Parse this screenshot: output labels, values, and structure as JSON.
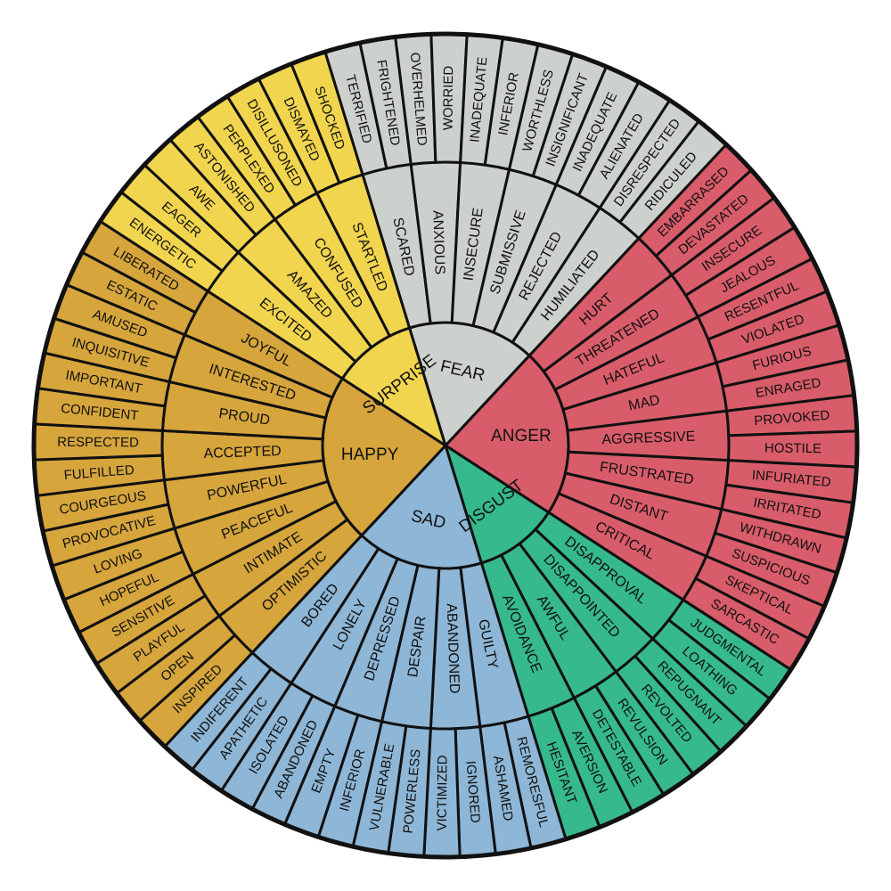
{
  "wheel": [
    {
      "label": "ANGER",
      "color": "#d95c6a",
      "children": [
        {
          "label": "HURT",
          "children": [
            "EMBARRASED",
            "DEVASTATED"
          ]
        },
        {
          "label": "THREATENED",
          "children": [
            "INSECURE",
            "JEALOUS"
          ]
        },
        {
          "label": "HATEFUL",
          "children": [
            "RESENTFUL",
            "VIOLATED"
          ]
        },
        {
          "label": "MAD",
          "children": [
            "FURIOUS",
            "ENRAGED"
          ]
        },
        {
          "label": "AGGRESSIVE",
          "children": [
            "PROVOKED",
            "HOSTILE"
          ]
        },
        {
          "label": "FRUSTRATED",
          "children": [
            "INFURIATED",
            "IRRITATED"
          ]
        },
        {
          "label": "DISTANT",
          "children": [
            "WITHDRAWN",
            "SUSPICIOUS"
          ]
        },
        {
          "label": "CRITICAL",
          "children": [
            "SKEPTICAL",
            "SARCASTIC"
          ]
        }
      ]
    },
    {
      "label": "DISGUST",
      "color": "#36b98c",
      "children": [
        {
          "label": "DISAPPROVAL",
          "children": [
            "JUDGMENTAL",
            "LOATHING"
          ]
        },
        {
          "label": "DISAPPOINTED",
          "children": [
            "REPUGNANT",
            "REVOLTED"
          ]
        },
        {
          "label": "AWFUL",
          "children": [
            "REVULSION",
            "DETESTABLE"
          ]
        },
        {
          "label": "AVOIDANCE",
          "children": [
            "AVERSION",
            "HESITANT"
          ]
        }
      ]
    },
    {
      "label": "SAD",
      "color": "#8eb6d6",
      "children": [
        {
          "label": "GUILTY",
          "children": [
            "REMORESFUL",
            "ASHAMED"
          ]
        },
        {
          "label": "ABANDONED",
          "children": [
            "IGNORED",
            "VICTIMIZED"
          ]
        },
        {
          "label": "DESPAIR",
          "children": [
            "POWERLESS",
            "VULNERABLE"
          ]
        },
        {
          "label": "DEPRESSED",
          "children": [
            "INFERIOR",
            "EMPTY"
          ]
        },
        {
          "label": "LONELY",
          "children": [
            "ABANDONED",
            "ISOLATED"
          ]
        },
        {
          "label": "BORED",
          "children": [
            "APATHETIC",
            "INDIFERENT"
          ]
        }
      ]
    },
    {
      "label": "HAPPY",
      "color": "#d6a53c",
      "children": [
        {
          "label": "OPTIMISTIC",
          "children": [
            "INSPIRED",
            "OPEN"
          ]
        },
        {
          "label": "INTIMATE",
          "children": [
            "PLAYFUL",
            "SENSITIVE"
          ]
        },
        {
          "label": "PEACEFUL",
          "children": [
            "HOPEFUL",
            "LOVING"
          ]
        },
        {
          "label": "POWERFUL",
          "children": [
            "PROVOCATIVE",
            "COURGEOUS"
          ]
        },
        {
          "label": "ACCEPTED",
          "children": [
            "FULFILLED",
            "RESPECTED"
          ]
        },
        {
          "label": "PROUD",
          "children": [
            "CONFIDENT",
            "IMPORTANT"
          ]
        },
        {
          "label": "INTERESTED",
          "children": [
            "INQUISITIVE",
            "AMUSED"
          ]
        },
        {
          "label": "JOYFUL",
          "children": [
            "ESTATIC",
            "LIBERATED"
          ]
        }
      ]
    },
    {
      "label": "SURPRISE",
      "color": "#f2d54e",
      "children": [
        {
          "label": "EXCITED",
          "children": [
            "ENERGETIC",
            "EAGER"
          ]
        },
        {
          "label": "AMAZED",
          "children": [
            "AWE",
            "ASTONISHED"
          ]
        },
        {
          "label": "CONFUSED",
          "children": [
            "PERPLEXED",
            "DISILLUSONED"
          ]
        },
        {
          "label": "STARTLED",
          "children": [
            "DISMAYED",
            "SHOCKED"
          ]
        }
      ]
    },
    {
      "label": "FEAR",
      "color": "#cdd1cd",
      "children": [
        {
          "label": "SCARED",
          "children": [
            "TERRIFIED",
            "FRIGHTENED"
          ]
        },
        {
          "label": "ANXIOUS",
          "children": [
            "OVERHELMED",
            "WORRIED"
          ]
        },
        {
          "label": "INSECURE",
          "children": [
            "INADEQUATE",
            "INFERIOR"
          ]
        },
        {
          "label": "SUBMISSIVE",
          "children": [
            "WORTHLESS",
            "INSIGNIFICANT"
          ]
        },
        {
          "label": "REJECTED",
          "children": [
            "INADEQUATE",
            "ALIENATED"
          ]
        },
        {
          "label": "HUMILIATED",
          "children": [
            "DISRESPECTED",
            "RIDICULED"
          ]
        }
      ]
    }
  ]
}
